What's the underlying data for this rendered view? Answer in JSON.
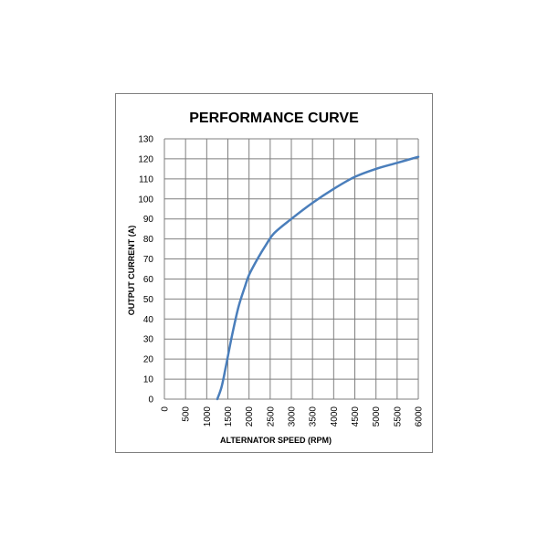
{
  "chart_data": {
    "type": "line",
    "title": "PERFORMANCE CURVE",
    "xlabel": "ALTERNATOR SPEED  (RPM)",
    "ylabel": "OUTPUT CURRENT (A)",
    "xlim": [
      0,
      6000
    ],
    "ylim": [
      0,
      130
    ],
    "xticks": [
      0,
      500,
      1000,
      1500,
      2000,
      2500,
      3000,
      3500,
      4000,
      4500,
      5000,
      5500,
      6000
    ],
    "yticks": [
      0,
      10,
      20,
      30,
      40,
      50,
      60,
      70,
      80,
      90,
      100,
      110,
      120,
      130
    ],
    "grid": true,
    "series": [
      {
        "color": "#4a7ebb",
        "x": [
          1250,
          1350,
          1450,
          1600,
          1750,
          1900,
          2000,
          2200,
          2400,
          2600,
          3000,
          3500,
          4000,
          4500,
          5000,
          5500,
          6000
        ],
        "y": [
          0,
          6,
          16,
          32,
          46,
          56,
          62,
          70,
          77,
          83,
          90,
          98,
          105,
          111,
          115,
          118,
          121
        ]
      }
    ]
  }
}
